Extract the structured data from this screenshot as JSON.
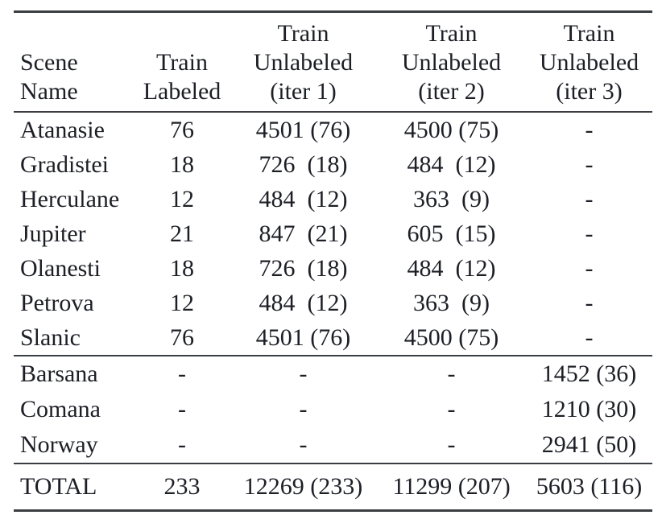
{
  "table": {
    "columns": [
      {
        "key": "scene",
        "label": "Scene\nName"
      },
      {
        "key": "labeled",
        "label": "Train\nLabeled"
      },
      {
        "key": "iter1",
        "label": "Train\nUnlabeled\n(iter 1)"
      },
      {
        "key": "iter2",
        "label": "Train\nUnlabeled\n(iter 2)"
      },
      {
        "key": "iter3",
        "label": "Train\nUnlabeled\n(iter 3)"
      }
    ],
    "sections": [
      {
        "name": "labeled-scenes",
        "rows": [
          {
            "scene": "Atanasie",
            "labeled": "76",
            "iter1": "4501 (76)",
            "iter2": "4500 (75)",
            "iter3": "-"
          },
          {
            "scene": "Gradistei",
            "labeled": "18",
            "iter1": "726  (18)",
            "iter2": "484  (12)",
            "iter3": "-"
          },
          {
            "scene": "Herculane",
            "labeled": "12",
            "iter1": "484  (12)",
            "iter2": "363  (9)",
            "iter3": "-"
          },
          {
            "scene": "Jupiter",
            "labeled": "21",
            "iter1": "847  (21)",
            "iter2": "605  (15)",
            "iter3": "-"
          },
          {
            "scene": "Olanesti",
            "labeled": "18",
            "iter1": "726  (18)",
            "iter2": "484  (12)",
            "iter3": "-"
          },
          {
            "scene": "Petrova",
            "labeled": "12",
            "iter1": "484  (12)",
            "iter2": "363  (9)",
            "iter3": "-"
          },
          {
            "scene": "Slanic",
            "labeled": "76",
            "iter1": "4501 (76)",
            "iter2": "4500 (75)",
            "iter3": "-"
          }
        ]
      },
      {
        "name": "iter3-only-scenes",
        "rows": [
          {
            "scene": "Barsana",
            "labeled": "-",
            "iter1": "-",
            "iter2": "-",
            "iter3": "1452 (36)"
          },
          {
            "scene": "Comana",
            "labeled": "-",
            "iter1": "-",
            "iter2": "-",
            "iter3": "1210 (30)"
          },
          {
            "scene": "Norway",
            "labeled": "-",
            "iter1": "-",
            "iter2": "-",
            "iter3": "2941 (50)"
          }
        ]
      },
      {
        "name": "total",
        "rows": [
          {
            "scene": "TOTAL",
            "labeled": "233",
            "iter1": "12269 (233)",
            "iter2": "11299 (207)",
            "iter3": "5603 (116)"
          }
        ]
      }
    ],
    "colors": {
      "text": "#1d1f26",
      "rule": "#3a3d42",
      "background": "#ffffff"
    }
  }
}
